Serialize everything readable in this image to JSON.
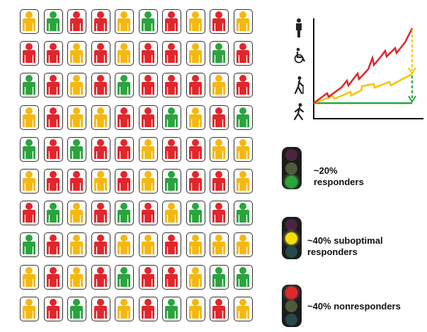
{
  "colors": {
    "green": "#2aa43d",
    "yellow": "#f5b811",
    "red": "#e2262b",
    "bulb_off_top": "#4a2540",
    "bulb_off_mid": "#4f5a3a",
    "bulb_off_bottom": "#254a47",
    "line_red": "#e2262b",
    "line_yellow": "#f5c400",
    "line_green": "#2aa43d"
  },
  "grid": {
    "rows": [
      [
        "yellow",
        "green",
        "red",
        "red",
        "yellow",
        "green",
        "red",
        "yellow",
        "red",
        "yellow"
      ],
      [
        "red",
        "red",
        "yellow",
        "red",
        "yellow",
        "red",
        "red",
        "yellow",
        "green",
        "red"
      ],
      [
        "green",
        "red",
        "yellow",
        "red",
        "green",
        "red",
        "red",
        "red",
        "yellow",
        "red"
      ],
      [
        "yellow",
        "red",
        "yellow",
        "yellow",
        "red",
        "red",
        "green",
        "yellow",
        "red",
        "green"
      ],
      [
        "green",
        "red",
        "green",
        "red",
        "red",
        "yellow",
        "red",
        "red",
        "yellow",
        "yellow"
      ],
      [
        "yellow",
        "red",
        "red",
        "yellow",
        "red",
        "yellow",
        "green",
        "red",
        "red",
        "yellow"
      ],
      [
        "red",
        "green",
        "yellow",
        "red",
        "green",
        "red",
        "yellow",
        "green",
        "red",
        "green"
      ],
      [
        "green",
        "red",
        "yellow",
        "red",
        "yellow",
        "yellow",
        "red",
        "yellow",
        "yellow",
        "yellow"
      ],
      [
        "yellow",
        "red",
        "yellow",
        "red",
        "green",
        "red",
        "red",
        "yellow",
        "green",
        "green"
      ],
      [
        "yellow",
        "red",
        "green",
        "red",
        "yellow",
        "red",
        "green",
        "yellow",
        "red",
        "yellow"
      ]
    ]
  },
  "chart": {
    "icons": [
      "standing-person-icon",
      "wheelchair-icon",
      "walking-cane-icon",
      "walking-person-icon"
    ]
  },
  "legend": [
    {
      "lit": "green",
      "line1": "~20%",
      "line2": "responders"
    },
    {
      "lit": "yellow",
      "line1": "~40% suboptimal",
      "line2": "responders"
    },
    {
      "lit": "red",
      "line1": "~40% nonresponders",
      "line2": ""
    }
  ]
}
